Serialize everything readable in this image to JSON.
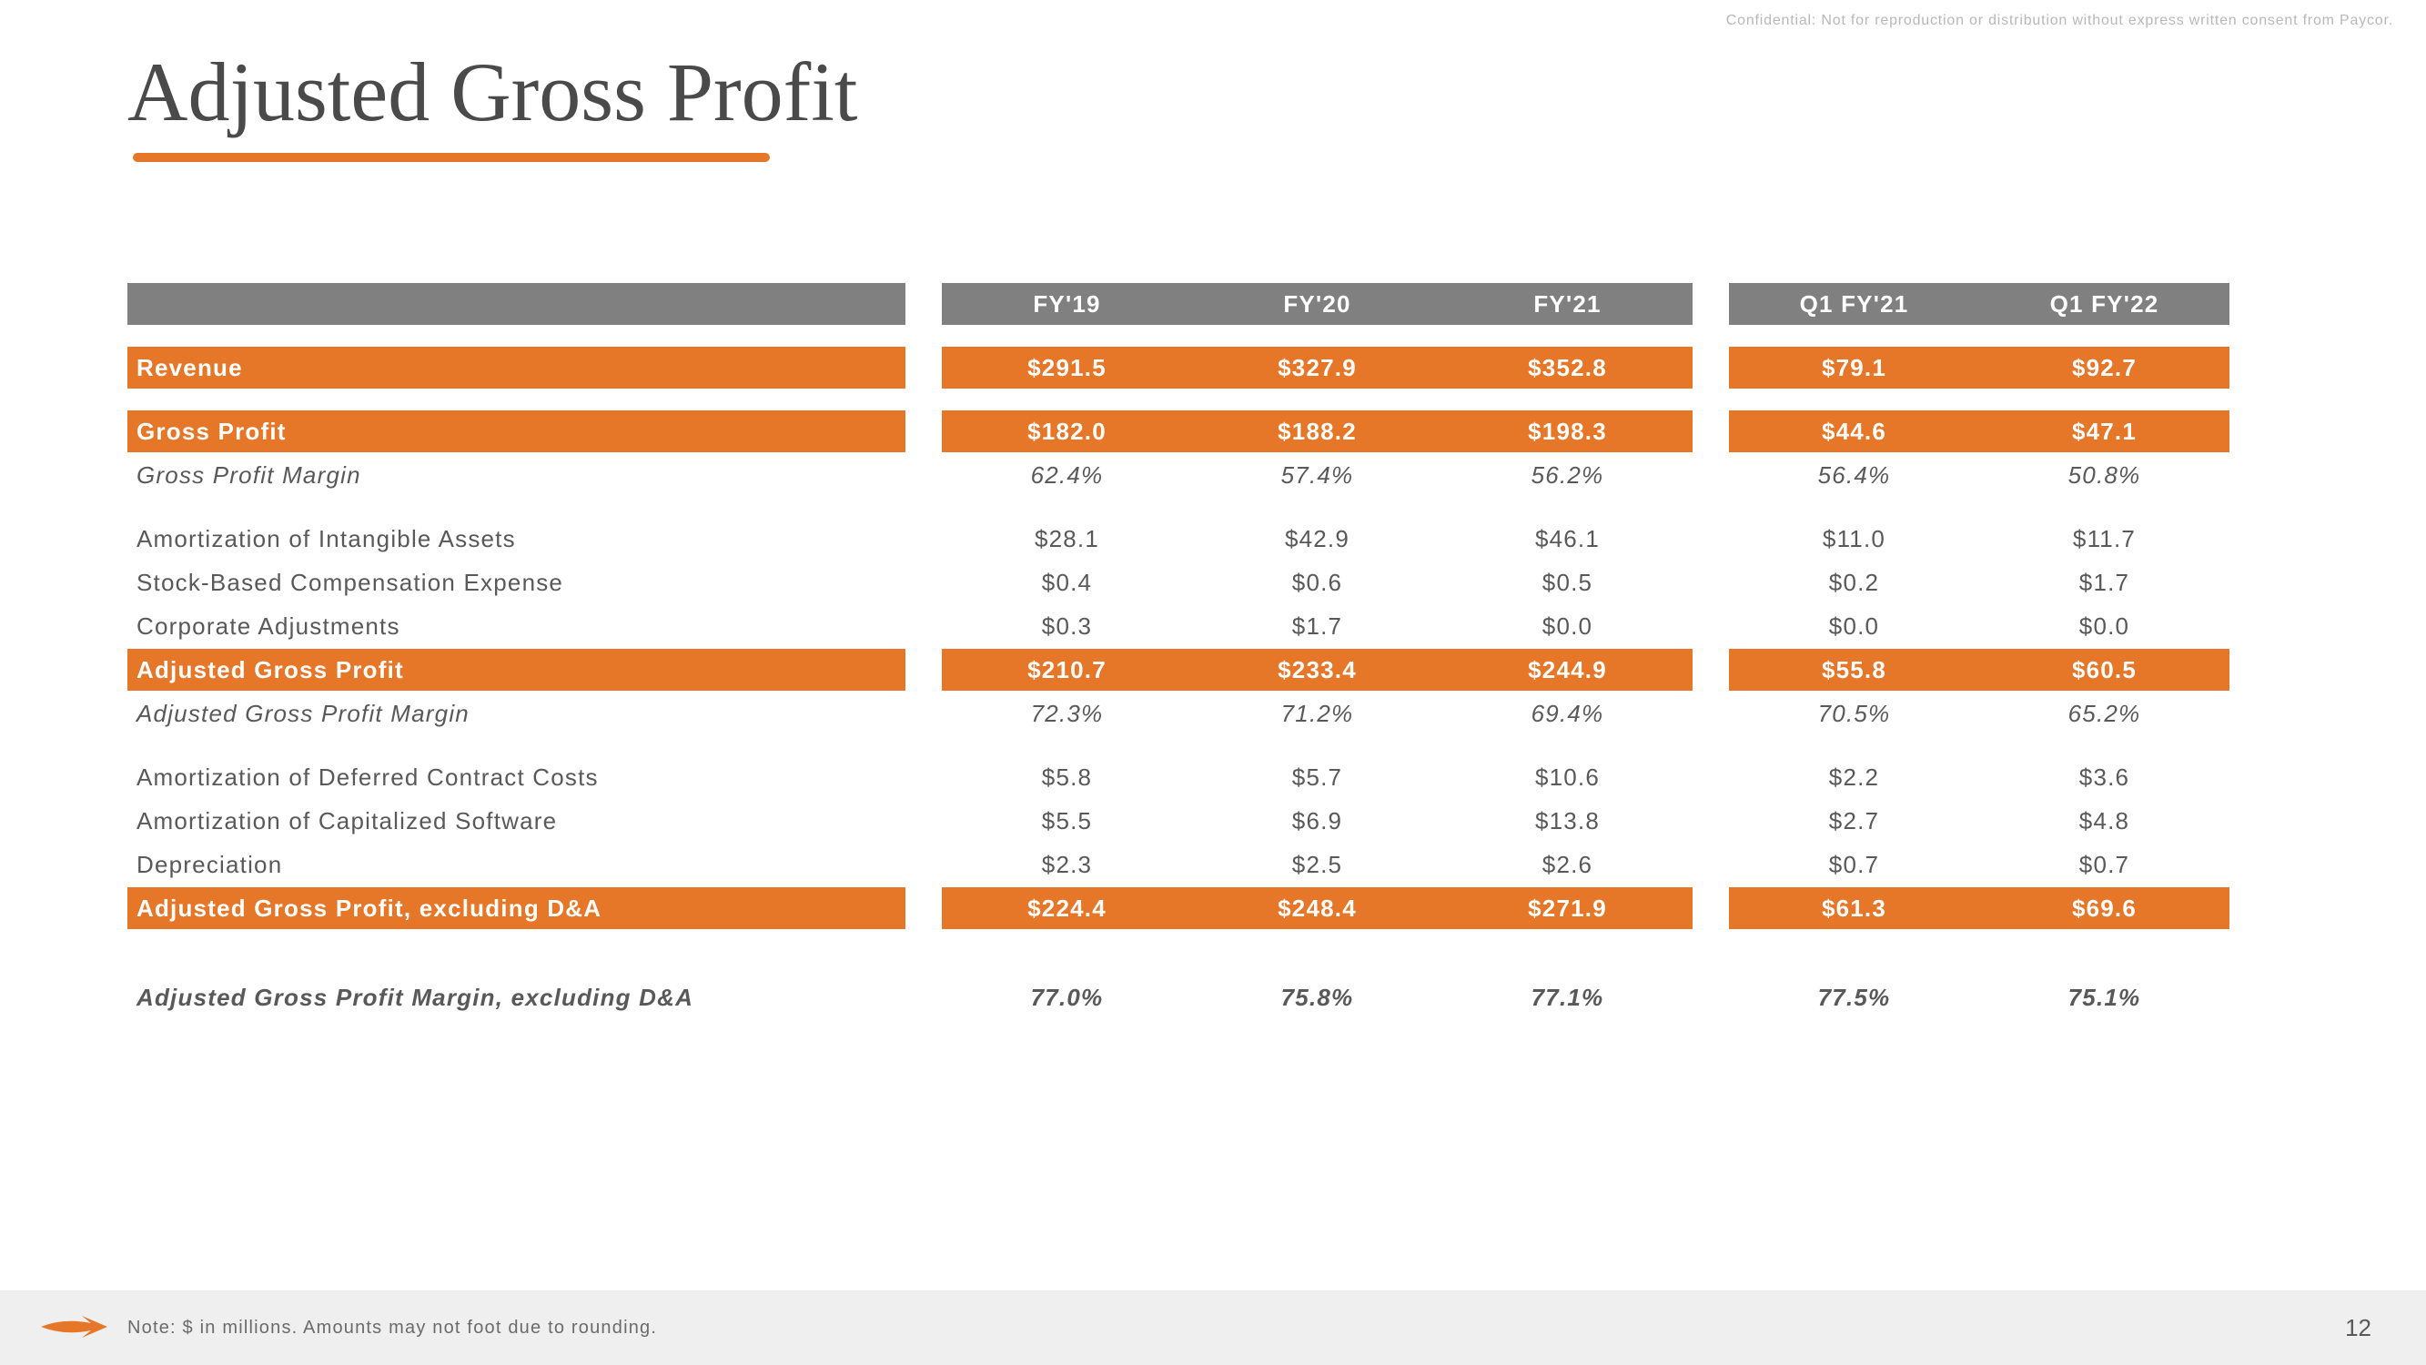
{
  "confidential": "Confidential: Not for reproduction or distribution without express written consent from Paycor.",
  "title": "Adjusted Gross Profit",
  "columns": [
    "FY'19",
    "FY'20",
    "FY'21",
    "Q1 FY'21",
    "Q1 FY'22"
  ],
  "colors": {
    "accent_orange": "#e67628",
    "header_gray": "#808080",
    "text_gray": "#595959",
    "footer_bg": "#efefef",
    "confidential_gray": "#b8b8b8"
  },
  "rows": [
    {
      "type": "header",
      "label": "",
      "cells": [
        "FY'19",
        "FY'20",
        "FY'21",
        "Q1 FY'21",
        "Q1 FY'22"
      ]
    },
    {
      "type": "gap"
    },
    {
      "type": "orange",
      "label": "Revenue",
      "cells": [
        "$291.5",
        "$327.9",
        "$352.8",
        "$79.1",
        "$92.7"
      ]
    },
    {
      "type": "gap"
    },
    {
      "type": "orange",
      "label": "Gross Profit",
      "cells": [
        "$182.0",
        "$188.2",
        "$198.3",
        "$44.6",
        "$47.1"
      ]
    },
    {
      "type": "italic",
      "label": "Gross Profit Margin",
      "cells": [
        "62.4%",
        "57.4%",
        "56.2%",
        "56.4%",
        "50.8%"
      ]
    },
    {
      "type": "gap"
    },
    {
      "type": "plain",
      "label": "Amortization of Intangible Assets",
      "cells": [
        "$28.1",
        "$42.9",
        "$46.1",
        "$11.0",
        "$11.7"
      ]
    },
    {
      "type": "plain",
      "label": "Stock-Based Compensation Expense",
      "cells": [
        "$0.4",
        "$0.6",
        "$0.5",
        "$0.2",
        "$1.7"
      ]
    },
    {
      "type": "plain",
      "label": "Corporate Adjustments",
      "cells": [
        "$0.3",
        "$1.7",
        "$0.0",
        "$0.0",
        "$0.0"
      ]
    },
    {
      "type": "orange",
      "label": "Adjusted Gross Profit",
      "cells": [
        "$210.7",
        "$233.4",
        "$244.9",
        "$55.8",
        "$60.5"
      ]
    },
    {
      "type": "italic",
      "label": "Adjusted Gross Profit Margin",
      "cells": [
        "72.3%",
        "71.2%",
        "69.4%",
        "70.5%",
        "65.2%"
      ]
    },
    {
      "type": "gap"
    },
    {
      "type": "plain",
      "label": "Amortization of Deferred Contract Costs",
      "cells": [
        "$5.8",
        "$5.7",
        "$10.6",
        "$2.2",
        "$3.6"
      ]
    },
    {
      "type": "plain",
      "label": "Amortization of Capitalized Software",
      "cells": [
        "$5.5",
        "$6.9",
        "$13.8",
        "$2.7",
        "$4.8"
      ]
    },
    {
      "type": "plain",
      "label": "Depreciation",
      "cells": [
        "$2.3",
        "$2.5",
        "$2.6",
        "$0.7",
        "$0.7"
      ]
    },
    {
      "type": "orange",
      "label": "Adjusted Gross Profit, excluding D&A",
      "cells": [
        "$224.4",
        "$248.4",
        "$271.9",
        "$61.3",
        "$69.6"
      ]
    },
    {
      "type": "biggap"
    },
    {
      "type": "bolditalic",
      "label": "Adjusted Gross Profit Margin, excluding D&A",
      "cells": [
        "77.0%",
        "75.8%",
        "77.1%",
        "77.5%",
        "75.1%"
      ]
    }
  ],
  "footer_note": "Note: $ in millions. Amounts may not foot due to rounding.",
  "page_number": "12"
}
